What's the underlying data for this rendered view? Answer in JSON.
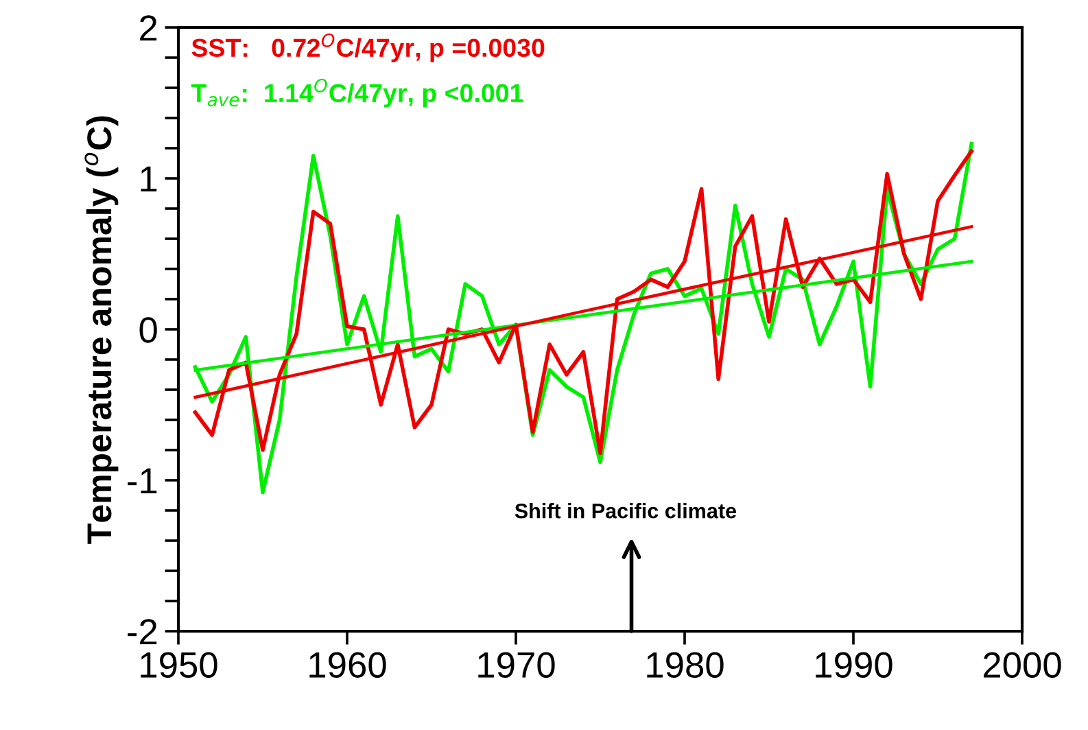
{
  "chart_data": {
    "type": "line",
    "ylabel": "Temperature anomaly ($^{o}$C)",
    "xlim": [
      1950,
      2000
    ],
    "xticks": [
      1950,
      1960,
      1970,
      1980,
      1990,
      2000
    ],
    "ylim": [
      -2,
      2
    ],
    "yticks": [
      -2,
      {
        "value": -1.8,
        "label": null
      },
      {
        "value": -1.6,
        "label": null
      },
      {
        "value": -1.4,
        "label": null
      },
      {
        "value": -1.2,
        "label": null
      },
      -1,
      {
        "value": -0.8,
        "label": null
      },
      {
        "value": -0.6,
        "label": null
      },
      {
        "value": -0.4,
        "label": null
      },
      {
        "value": -0.2,
        "label": null
      },
      0,
      {
        "value": 0.2,
        "label": null
      },
      {
        "value": 0.4,
        "label": null
      },
      {
        "value": 0.6,
        "label": null
      },
      {
        "value": 0.8,
        "label": null
      },
      1,
      {
        "value": 1.2,
        "label": null
      },
      {
        "value": 1.4,
        "label": null
      },
      {
        "value": 1.6,
        "label": null
      },
      {
        "value": 1.8,
        "label": null
      },
      2
    ],
    "legend": "top left",
    "grid": false,
    "marker": "none",
    "line_style": "solid",
    "x": [
      1951,
      1952,
      1953,
      1954,
      1955,
      1956,
      1957,
      1958,
      1959,
      1960,
      1961,
      1962,
      1963,
      1964,
      1965,
      1966,
      1967,
      1968,
      1969,
      1970,
      1971,
      1972,
      1973,
      1974,
      1975,
      1976,
      1977,
      1978,
      1979,
      1980,
      1981,
      1982,
      1983,
      1984,
      1985,
      1986,
      1987,
      1988,
      1989,
      1990,
      1991,
      1992,
      1993,
      1994,
      1995,
      1996,
      1997
    ],
    "series": [
      {
        "name": "T$_{ave}$:  1.14$^{O}$C/47yr, p <0.001",
        "color": "#00ee00",
        "values": [
          -0.25,
          -0.48,
          -0.3,
          -0.05,
          -1.08,
          -0.6,
          0.35,
          1.15,
          0.62,
          -0.1,
          0.22,
          -0.15,
          0.75,
          -0.18,
          -0.13,
          -0.28,
          0.3,
          0.22,
          -0.1,
          0.03,
          -0.7,
          -0.27,
          -0.38,
          -0.45,
          -0.88,
          -0.27,
          0.1,
          0.37,
          0.4,
          0.22,
          0.27,
          -0.03,
          0.82,
          0.3,
          -0.05,
          0.4,
          0.33,
          -0.1,
          0.15,
          0.45,
          -0.38,
          0.93,
          0.5,
          0.3,
          0.53,
          0.6,
          1.23
        ]
      },
      {
        "name": "SST:   0.72$^{O}$C/47yr, p =0.0030",
        "color": "#ee0000",
        "values": [
          -0.55,
          -0.7,
          -0.27,
          -0.22,
          -0.8,
          -0.3,
          -0.03,
          0.78,
          0.7,
          0.02,
          0.0,
          -0.5,
          -0.1,
          -0.65,
          -0.5,
          0.0,
          -0.03,
          0.0,
          -0.22,
          0.03,
          -0.68,
          -0.1,
          -0.3,
          -0.15,
          -0.82,
          0.2,
          0.25,
          0.33,
          0.28,
          0.45,
          0.93,
          -0.33,
          0.55,
          0.75,
          0.05,
          0.73,
          0.28,
          0.47,
          0.3,
          0.33,
          0.18,
          1.03,
          0.5,
          0.2,
          0.85,
          1.02,
          1.18
        ]
      },
      {
        "color": "#00ee00",
        "x": [
          1951,
          1974,
          1997
        ],
        "values": [
          -0.27,
          0.09,
          0.45
        ]
      },
      {
        "color": "#ee0000",
        "x": [
          1951,
          1974,
          1997
        ],
        "values": [
          -0.45,
          0.12,
          0.68
        ]
      }
    ],
    "annotations": [
      "Shift in Pacific climate"
    ]
  }
}
